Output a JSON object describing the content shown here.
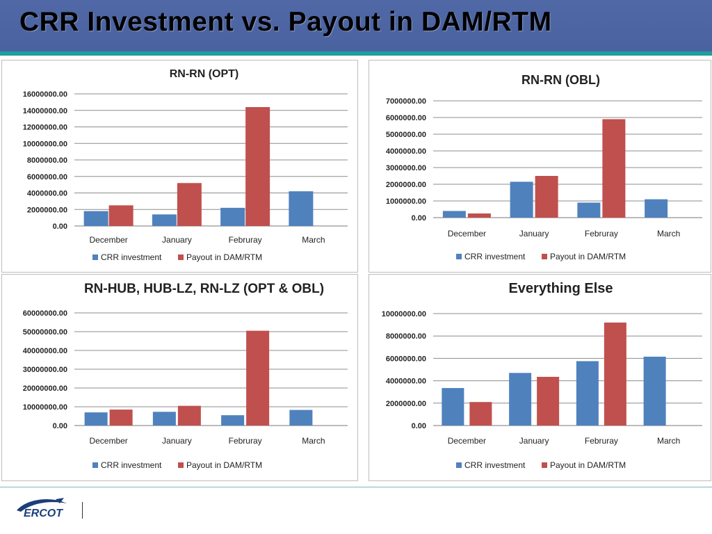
{
  "slide": {
    "title": "CRR Investment vs. Payout in DAM/RTM",
    "logo_text": "ERCOT"
  },
  "colors": {
    "crr": "#4f81bd",
    "payout": "#c0504d",
    "grid": "#8c8c8c"
  },
  "chart_data": [
    {
      "type": "bar",
      "title": "RN-RN (OPT)",
      "categories": [
        "December",
        "January",
        "Februray",
        "March"
      ],
      "series": [
        {
          "name": "CRR investment",
          "values": [
            1800000,
            1400000,
            2200000,
            4200000
          ]
        },
        {
          "name": "Payout in DAM/RTM",
          "values": [
            2500000,
            5200000,
            14400000,
            0
          ]
        }
      ],
      "ylim": [
        0,
        16000000
      ],
      "yticks": [
        "0.00",
        "2000000.00",
        "4000000.00",
        "6000000.00",
        "8000000.00",
        "10000000.00",
        "12000000.00",
        "14000000.00",
        "16000000.00"
      ],
      "legend": "bottom",
      "grid": true
    },
    {
      "type": "bar",
      "title": "RN-RN (OBL)",
      "categories": [
        "December",
        "January",
        "Februray",
        "March"
      ],
      "series": [
        {
          "name": "CRR investment",
          "values": [
            400000,
            2150000,
            900000,
            1100000
          ]
        },
        {
          "name": "Payout in DAM/RTM",
          "values": [
            250000,
            2500000,
            5900000,
            0
          ]
        }
      ],
      "ylim": [
        0,
        7000000
      ],
      "yticks": [
        "0.00",
        "1000000.00",
        "2000000.00",
        "3000000.00",
        "4000000.00",
        "5000000.00",
        "6000000.00",
        "7000000.00"
      ],
      "legend": "bottom",
      "grid": true
    },
    {
      "type": "bar",
      "title": "RN-HUB, HUB-LZ, RN-LZ (OPT & OBL)",
      "categories": [
        "December",
        "January",
        "Februray",
        "March"
      ],
      "series": [
        {
          "name": "CRR investment",
          "values": [
            7000000,
            7300000,
            5500000,
            8300000
          ]
        },
        {
          "name": "Payout in DAM/RTM",
          "values": [
            8500000,
            10500000,
            50500000,
            0
          ]
        }
      ],
      "ylim": [
        0,
        60000000
      ],
      "yticks": [
        "0.00",
        "10000000.00",
        "20000000.00",
        "30000000.00",
        "40000000.00",
        "50000000.00",
        "60000000.00"
      ],
      "legend": "bottom",
      "grid": true
    },
    {
      "type": "bar",
      "title": "Everything Else",
      "categories": [
        "December",
        "January",
        "Februray",
        "March"
      ],
      "series": [
        {
          "name": "CRR investment",
          "values": [
            3350000,
            4700000,
            5750000,
            6150000
          ]
        },
        {
          "name": "Payout in DAM/RTM",
          "values": [
            2100000,
            4350000,
            9200000,
            0
          ]
        }
      ],
      "ylim": [
        0,
        10000000
      ],
      "yticks": [
        "0.00",
        "2000000.00",
        "4000000.00",
        "6000000.00",
        "8000000.00",
        "10000000.00"
      ],
      "legend": "bottom",
      "grid": true
    }
  ]
}
